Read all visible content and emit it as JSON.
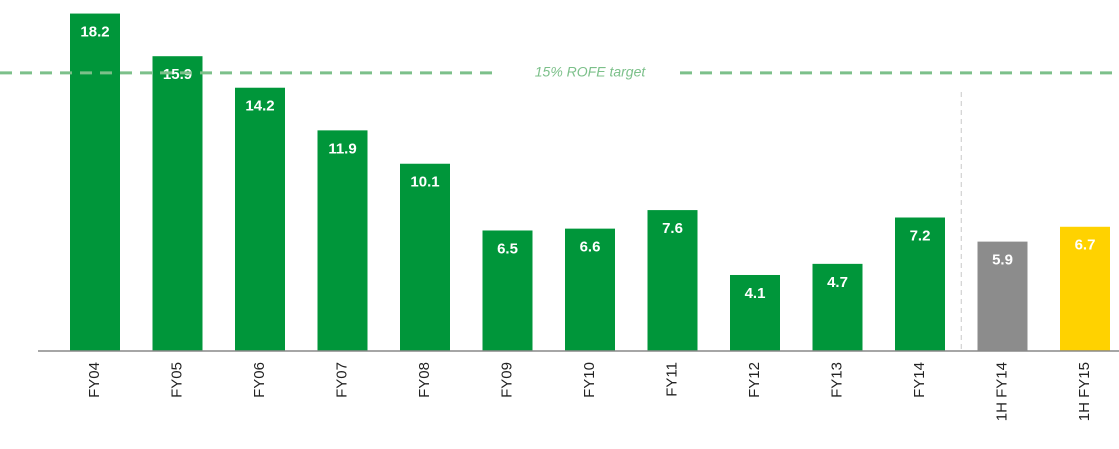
{
  "chart_data": {
    "type": "bar",
    "categories": [
      "FY04",
      "FY05",
      "FY06",
      "FY07",
      "FY08",
      "FY09",
      "FY10",
      "FY11",
      "FY12",
      "FY13",
      "FY14",
      "1H FY14",
      "1H FY15"
    ],
    "values": [
      18.2,
      15.9,
      14.2,
      11.9,
      10.1,
      6.5,
      6.6,
      7.6,
      4.1,
      4.7,
      7.2,
      5.9,
      6.7
    ],
    "colors": [
      "#00963a",
      "#00963a",
      "#00963a",
      "#00963a",
      "#00963a",
      "#00963a",
      "#00963a",
      "#00963a",
      "#00963a",
      "#00963a",
      "#00963a",
      "#8c8c8c",
      "#ffd200"
    ],
    "ylim": [
      0,
      18.5
    ],
    "reference_line": {
      "value": 15,
      "label": "15% ROFE target",
      "color": "#7cc08a"
    }
  }
}
